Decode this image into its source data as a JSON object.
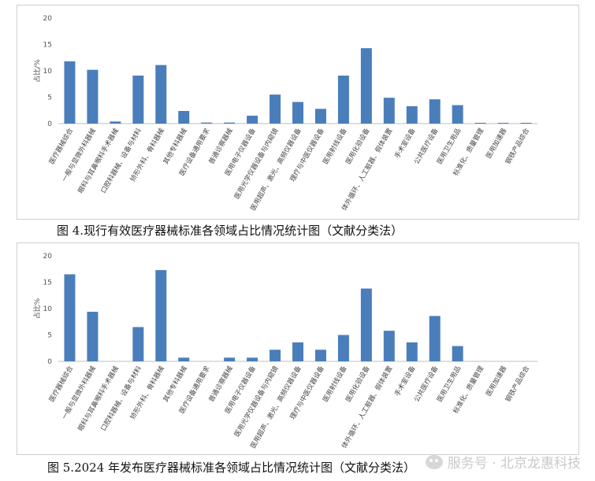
{
  "chart_data": [
    {
      "type": "bar",
      "ylabel": "占比/%",
      "ylim": [
        0,
        20
      ],
      "yticks": [
        "0",
        "5",
        "10",
        "15",
        "20"
      ],
      "color": "#4a7ebb",
      "categories": [
        "医疗器械综合",
        "一般与显微外科器械",
        "眼科与耳鼻喉科手术器械",
        "口腔科器械、设备与材料",
        "矫形外科、骨科器械",
        "其他专科器械",
        "医疗设备通用要求",
        "普通诊察器械",
        "医用电子仪器设备",
        "医用光学仪器设备与内窥镜",
        "医用超声、激光、高频仪器设备",
        "理疗与中医仪器设备",
        "医用射线设备",
        "医用化验设备",
        "体外循环、人工脏器、假体装置",
        "手术室设备",
        "公共医疗设备",
        "医用卫生用品",
        "标准化、质量管理",
        "医用加速器",
        "钢铁产品综合"
      ],
      "values": [
        11.8,
        10.2,
        0.4,
        9.1,
        11.1,
        2.4,
        0.2,
        0.2,
        1.5,
        5.5,
        4.1,
        2.8,
        9.1,
        14.3,
        4.9,
        3.3,
        4.6,
        3.5,
        0.1,
        0.1,
        0.1
      ],
      "caption": "图 4.现行有效医疗器械标准各领域占比情况统计图（文献分类法）"
    },
    {
      "type": "bar",
      "ylabel": "占比%",
      "ylim": [
        0,
        20
      ],
      "yticks": [
        "0",
        "5",
        "10",
        "15",
        "20"
      ],
      "color": "#4a7ebb",
      "categories": [
        "医疗器械综合",
        "一般与显微外科器械",
        "眼科与耳鼻喉科手术器械",
        "口腔科器械、设备与材料",
        "矫形外科、骨科器械",
        "其他专科器械",
        "医疗设备通用要求",
        "普通诊察器械",
        "医用电子仪器设备",
        "医用光学仪器设备与内窥镜",
        "医用超声、激光、高频仪器设备",
        "理疗与中医仪器设备",
        "医用射线设备",
        "医用化验设备",
        "体外循环、人工脏器、假体装置",
        "手术室设备",
        "公共医疗设备",
        "医用卫生用品",
        "标准化、质量管理",
        "医用加速器",
        "钢铁产品综合"
      ],
      "values": [
        16.5,
        9.4,
        0,
        6.5,
        17.3,
        0.7,
        0,
        0.7,
        0.7,
        2.2,
        3.6,
        2.2,
        5.0,
        13.8,
        5.8,
        3.6,
        8.6,
        2.9,
        0,
        0,
        0
      ],
      "caption": "图 5.2024 年发布医疗器械标准各领域占比情况统计图（文献分类法）"
    }
  ],
  "watermark": "服务号 · 北京龙惠科技"
}
